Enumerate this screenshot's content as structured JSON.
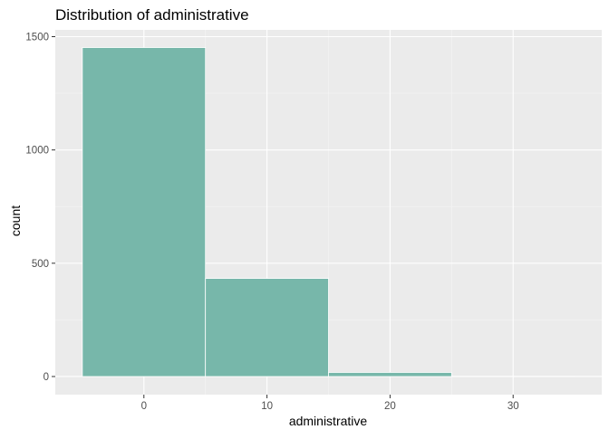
{
  "chart_data": {
    "type": "bar",
    "title": "Distribution of administrative",
    "xlabel": "administrative",
    "ylabel": "count",
    "bins": [
      {
        "x_start": -5,
        "x_end": 5,
        "count": 1452
      },
      {
        "x_start": 5,
        "x_end": 15,
        "count": 433
      },
      {
        "x_start": 15,
        "x_end": 25,
        "count": 18
      },
      {
        "x_start": 25,
        "x_end": 35,
        "count": 1
      }
    ],
    "xlim": [
      -7.2,
      37.2
    ],
    "ylim": [
      -80,
      1530
    ],
    "x_ticks": [
      0,
      10,
      20,
      30
    ],
    "x_tick_labels": [
      "0",
      "10",
      "20",
      "30"
    ],
    "y_ticks": [
      0,
      500,
      1000,
      1500
    ],
    "y_tick_labels": [
      "0",
      "500",
      "1000",
      "1500"
    ],
    "grid": true,
    "legend": "none",
    "colors": {
      "bar_fill": "#77B7AA",
      "bar_outline": "#FFFFFF",
      "panel_background": "#EBEBEB",
      "grid_major": "#FFFFFF",
      "grid_minor": "#F5F5F5",
      "tick_text": "#4D4D4D",
      "axis_ticks": "#333333"
    }
  }
}
